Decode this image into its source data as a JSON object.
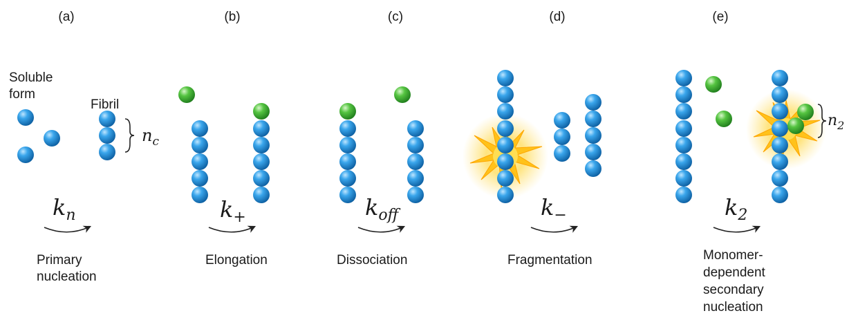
{
  "colors": {
    "monomer": "#1e8ed8",
    "monomer_dark": "#0d5a99",
    "new_monomer": "#4cbf3c",
    "new_monomer_dark": "#1f7a1c",
    "burst": "#ffb400",
    "arrow": "#222222"
  },
  "panels": [
    {
      "id": "a",
      "letter": "(a)",
      "rate_base": "k",
      "rate_sub": "n",
      "caption": [
        "Primary",
        "nucleation"
      ],
      "annotations": [
        {
          "key": "soluble",
          "lines": [
            "Soluble",
            "form"
          ]
        },
        {
          "key": "fibril",
          "lines": [
            "Fibril"
          ]
        },
        {
          "key": "nc",
          "base": "n",
          "sub": "c"
        }
      ]
    },
    {
      "id": "b",
      "letter": "(b)",
      "rate_base": "k",
      "rate_sub": "+",
      "caption": [
        "Elongation"
      ],
      "annotations": []
    },
    {
      "id": "c",
      "letter": "(c)",
      "rate_base": "k",
      "rate_sub": "off",
      "caption": [
        "Dissociation"
      ],
      "annotations": []
    },
    {
      "id": "d",
      "letter": "(d)",
      "rate_base": "k",
      "rate_sub": "−",
      "caption": [
        "Fragmentation"
      ],
      "annotations": []
    },
    {
      "id": "e",
      "letter": "(e)",
      "rate_base": "k",
      "rate_sub": "2",
      "caption": [
        "Monomer-",
        "dependent",
        "secondary",
        "nucleation"
      ],
      "annotations": [
        {
          "key": "n2",
          "base": "n",
          "sub": "2"
        }
      ]
    }
  ]
}
